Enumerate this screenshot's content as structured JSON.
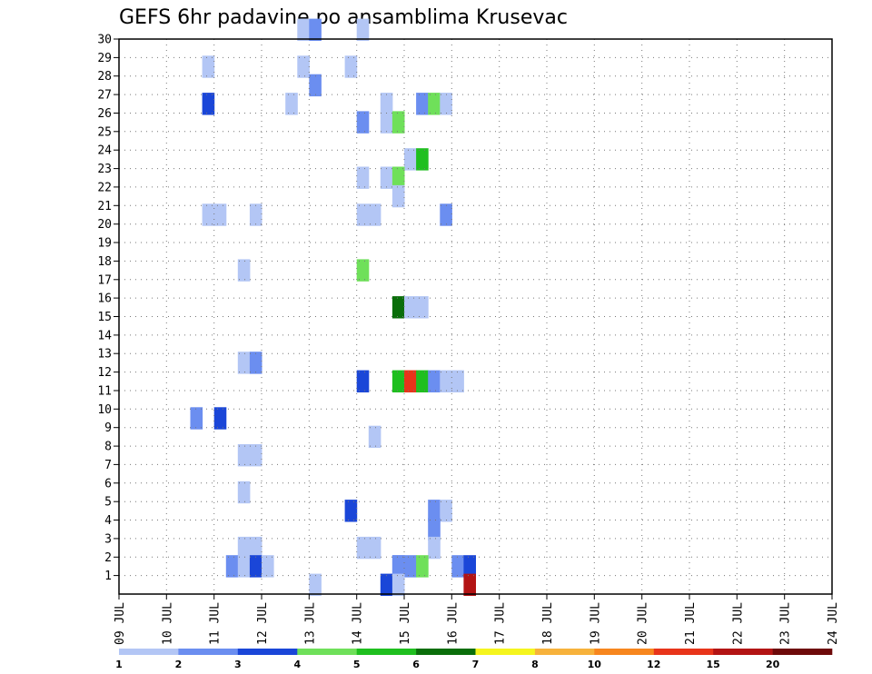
{
  "chart_data": {
    "type": "heatmap",
    "title": "GEFS 6hr padavine po ansamblima Krusevac",
    "y_tick_labels": [
      "1",
      "2",
      "3",
      "4",
      "5",
      "6",
      "7",
      "8",
      "9",
      "10",
      "11",
      "12",
      "13",
      "14",
      "15",
      "16",
      "17",
      "18",
      "19",
      "20",
      "21",
      "22",
      "23",
      "24",
      "25",
      "26",
      "27",
      "28",
      "29",
      "30"
    ],
    "x_tick_labels": [
      "09 JUL",
      "10 JUL",
      "11 JUL",
      "12 JUL",
      "13 JUL",
      "14 JUL",
      "15 JUL",
      "16 JUL",
      "17 JUL",
      "18 JUL",
      "19 JUL",
      "20 JUL",
      "21 JUL",
      "22 JUL",
      "23 JUL",
      "24 JUL"
    ],
    "xlim": [
      0,
      60
    ],
    "ylim": [
      0,
      30
    ],
    "grid": true,
    "colorbar": {
      "labels": [
        "1",
        "2",
        "3",
        "4",
        "5",
        "6",
        "7",
        "8",
        "10",
        "12",
        "15",
        "20"
      ],
      "colors": [
        "#b3c6f5",
        "#6b8ef0",
        "#1a46d8",
        "#6fe05a",
        "#1fbf1f",
        "#0a6e0a",
        "#f5f51e",
        "#f7b23c",
        "#f7861e",
        "#e8341a",
        "#b31414",
        "#6e0a0a"
      ]
    },
    "cells": [
      {
        "t": 15,
        "m": 30,
        "c": 1
      },
      {
        "t": 16,
        "m": 30,
        "c": 2
      },
      {
        "t": 20,
        "m": 30,
        "c": 1
      },
      {
        "t": 7,
        "m": 28,
        "c": 1
      },
      {
        "t": 15,
        "m": 28,
        "c": 1
      },
      {
        "t": 19,
        "m": 28,
        "c": 1
      },
      {
        "t": 16,
        "m": 27,
        "c": 2
      },
      {
        "t": 7,
        "m": 26,
        "c": 3
      },
      {
        "t": 14,
        "m": 26,
        "c": 1
      },
      {
        "t": 22,
        "m": 26,
        "c": 1
      },
      {
        "t": 25,
        "m": 26,
        "c": 2
      },
      {
        "t": 26,
        "m": 26,
        "c": 4
      },
      {
        "t": 27,
        "m": 26,
        "c": 1
      },
      {
        "t": 20,
        "m": 25,
        "c": 2
      },
      {
        "t": 22,
        "m": 25,
        "c": 1
      },
      {
        "t": 23,
        "m": 25,
        "c": 4
      },
      {
        "t": 24,
        "m": 23,
        "c": 1
      },
      {
        "t": 25,
        "m": 23,
        "c": 5
      },
      {
        "t": 20,
        "m": 22,
        "c": 1
      },
      {
        "t": 22,
        "m": 22,
        "c": 1
      },
      {
        "t": 23,
        "m": 22,
        "c": 4
      },
      {
        "t": 23,
        "m": 21,
        "c": 1
      },
      {
        "t": 7,
        "m": 20,
        "c": 1
      },
      {
        "t": 8,
        "m": 20,
        "c": 1
      },
      {
        "t": 11,
        "m": 20,
        "c": 1
      },
      {
        "t": 20,
        "m": 20,
        "c": 1
      },
      {
        "t": 21,
        "m": 20,
        "c": 1
      },
      {
        "t": 27,
        "m": 20,
        "c": 2
      },
      {
        "t": 10,
        "m": 17,
        "c": 1
      },
      {
        "t": 20,
        "m": 17,
        "c": 4
      },
      {
        "t": 23,
        "m": 15,
        "c": 6
      },
      {
        "t": 24,
        "m": 15,
        "c": 1
      },
      {
        "t": 25,
        "m": 15,
        "c": 1
      },
      {
        "t": 10,
        "m": 12,
        "c": 1
      },
      {
        "t": 11,
        "m": 12,
        "c": 2
      },
      {
        "t": 20,
        "m": 11,
        "c": 3
      },
      {
        "t": 23,
        "m": 11,
        "c": 5
      },
      {
        "t": 24,
        "m": 11,
        "c": 10
      },
      {
        "t": 25,
        "m": 11,
        "c": 5
      },
      {
        "t": 26,
        "m": 11,
        "c": 2
      },
      {
        "t": 27,
        "m": 11,
        "c": 1
      },
      {
        "t": 28,
        "m": 11,
        "c": 1
      },
      {
        "t": 6,
        "m": 9,
        "c": 2
      },
      {
        "t": 8,
        "m": 9,
        "c": 3
      },
      {
        "t": 21,
        "m": 8,
        "c": 1
      },
      {
        "t": 10,
        "m": 7,
        "c": 1
      },
      {
        "t": 11,
        "m": 7,
        "c": 1
      },
      {
        "t": 10,
        "m": 5,
        "c": 1
      },
      {
        "t": 19,
        "m": 4,
        "c": 3
      },
      {
        "t": 26,
        "m": 4,
        "c": 2
      },
      {
        "t": 27,
        "m": 4,
        "c": 1
      },
      {
        "t": 26,
        "m": 3,
        "c": 2
      },
      {
        "t": 10,
        "m": 2,
        "c": 1
      },
      {
        "t": 11,
        "m": 2,
        "c": 1
      },
      {
        "t": 20,
        "m": 2,
        "c": 1
      },
      {
        "t": 21,
        "m": 2,
        "c": 1
      },
      {
        "t": 26,
        "m": 2,
        "c": 1
      },
      {
        "t": 9,
        "m": 1,
        "c": 2
      },
      {
        "t": 10,
        "m": 1,
        "c": 1
      },
      {
        "t": 11,
        "m": 1,
        "c": 3
      },
      {
        "t": 12,
        "m": 1,
        "c": 1
      },
      {
        "t": 23,
        "m": 1,
        "c": 2
      },
      {
        "t": 23,
        "m": 1,
        "c": 2
      },
      {
        "t": 24,
        "m": 1,
        "c": 2
      },
      {
        "t": 25,
        "m": 1,
        "c": 4
      },
      {
        "t": 28,
        "m": 1,
        "c": 2
      },
      {
        "t": 29,
        "m": 1,
        "c": 3
      },
      {
        "t": 16,
        "m": 0,
        "c": 1
      },
      {
        "t": 22,
        "m": 0,
        "c": 3
      },
      {
        "t": 23,
        "m": 0,
        "c": 1
      },
      {
        "t": 29,
        "m": 0,
        "c": 11
      }
    ]
  }
}
